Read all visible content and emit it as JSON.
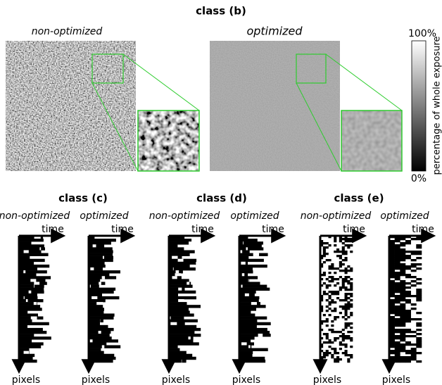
{
  "panel_b": {
    "title": "class (b)",
    "left_label": "non-optimized",
    "right_label": "optimized",
    "colorbar": {
      "max_label": "100%",
      "min_label": "0%",
      "axis_label": "percentage of whole exposure"
    }
  },
  "panels": [
    {
      "title": "class (c)",
      "subplots": [
        {
          "label": "non-optimized",
          "x_axis": "time",
          "y_axis": "pixels"
        },
        {
          "label": "optimized",
          "x_axis": "time",
          "y_axis": "pixels"
        }
      ]
    },
    {
      "title": "class (d)",
      "subplots": [
        {
          "label": "non-optimized",
          "x_axis": "time",
          "y_axis": "pixels"
        },
        {
          "label": "optimized",
          "x_axis": "time",
          "y_axis": "pixels"
        }
      ]
    },
    {
      "title": "class (e)",
      "subplots": [
        {
          "label": "non-optimized",
          "x_axis": "time",
          "y_axis": "pixels"
        },
        {
          "label": "optimized",
          "x_axis": "time",
          "y_axis": "pixels"
        }
      ]
    }
  ]
}
